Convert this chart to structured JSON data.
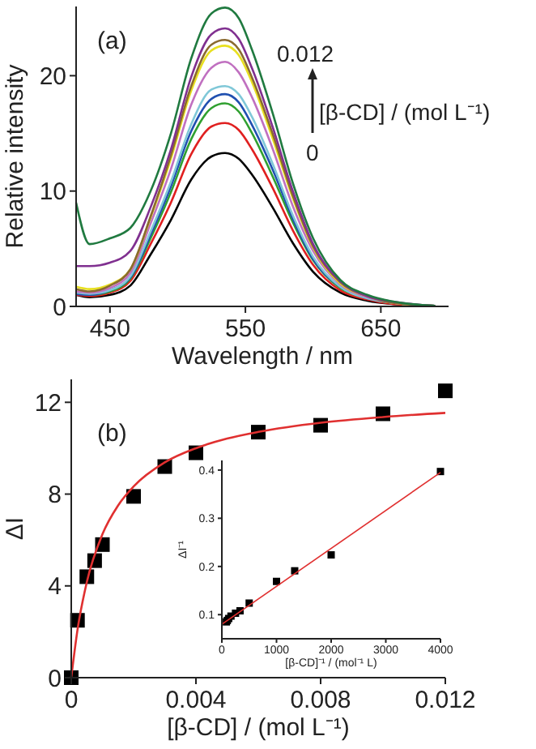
{
  "chart_data": [
    {
      "type": "line",
      "xlabel": "Wavelength / nm",
      "ylabel": "Relative intensity",
      "xlim": [
        425,
        700
      ],
      "ylim": [
        0,
        26
      ],
      "xticks": [
        450,
        550,
        650
      ],
      "yticks": [
        0,
        10,
        20
      ],
      "annotations": [
        "(a)",
        "0.012",
        "[β-CD] / (mol L⁻¹)",
        "0"
      ],
      "x": [
        425,
        435,
        450,
        465,
        480,
        495,
        510,
        525,
        535,
        545,
        555,
        570,
        585,
        600,
        620,
        640,
        660,
        690
      ],
      "series": [
        {
          "color": "#000000",
          "values": [
            1.0,
            0.8,
            1.0,
            1.8,
            4.5,
            7.5,
            11.0,
            13.0,
            13.3,
            12.8,
            11.4,
            8.6,
            5.5,
            3.0,
            1.2,
            0.5,
            0.2,
            0.05
          ]
        },
        {
          "color": "#e02020",
          "values": [
            1.0,
            0.9,
            1.2,
            2.2,
            5.4,
            9.0,
            13.2,
            15.6,
            15.9,
            15.3,
            13.6,
            10.3,
            6.6,
            3.6,
            1.4,
            0.6,
            0.2,
            0.05
          ]
        },
        {
          "color": "#30a030",
          "values": [
            1.2,
            1.0,
            1.3,
            2.4,
            5.9,
            9.9,
            14.5,
            17.2,
            17.6,
            16.9,
            15.0,
            11.3,
            7.3,
            4.0,
            1.6,
            0.7,
            0.3,
            0.05
          ]
        },
        {
          "color": "#2050b0",
          "values": [
            1.1,
            1.0,
            1.4,
            2.5,
            6.2,
            10.4,
            15.2,
            18.0,
            18.4,
            17.7,
            15.7,
            11.9,
            7.6,
            4.1,
            1.7,
            0.7,
            0.3,
            0.05
          ]
        },
        {
          "color": "#80c8d8",
          "values": [
            1.2,
            1.1,
            1.4,
            2.6,
            6.5,
            10.8,
            15.8,
            18.8,
            19.1,
            18.4,
            16.4,
            12.4,
            7.9,
            4.3,
            1.7,
            0.7,
            0.3,
            0.05
          ]
        },
        {
          "color": "#c070c0",
          "values": [
            1.3,
            1.2,
            1.6,
            2.9,
            7.2,
            11.9,
            17.5,
            20.7,
            21.2,
            20.3,
            18.1,
            13.7,
            8.7,
            4.8,
            1.9,
            0.8,
            0.3,
            0.05
          ]
        },
        {
          "color": "#e8e020",
          "values": [
            1.7,
            1.5,
            1.9,
            3.2,
            7.7,
            12.8,
            18.7,
            22.2,
            22.6,
            21.8,
            19.4,
            14.6,
            9.4,
            5.1,
            2.0,
            0.9,
            0.3,
            0.05
          ]
        },
        {
          "color": "#8a6a30",
          "values": [
            1.5,
            1.3,
            1.8,
            3.2,
            7.8,
            13.1,
            19.1,
            22.7,
            23.1,
            22.3,
            19.8,
            15.0,
            9.6,
            5.2,
            2.1,
            0.9,
            0.3,
            0.05
          ]
        },
        {
          "color": "#803090",
          "values": [
            3.5,
            3.5,
            3.8,
            4.8,
            8.6,
            13.6,
            19.9,
            23.6,
            24.1,
            23.2,
            20.6,
            15.6,
            10.0,
            5.4,
            2.2,
            0.9,
            0.4,
            0.05
          ]
        },
        {
          "color": "#207a40",
          "values": [
            9.0,
            5.4,
            5.9,
            6.8,
            10.0,
            15.0,
            21.5,
            25.4,
            25.9,
            25.0,
            22.2,
            16.8,
            10.7,
            5.9,
            2.3,
            1.0,
            0.4,
            0.05
          ]
        }
      ]
    },
    {
      "type": "scatter",
      "xlabel": "[β-CD] / (mol L⁻¹)",
      "ylabel": "ΔI",
      "xlim": [
        0,
        0.012
      ],
      "ylim": [
        0,
        13
      ],
      "xticks": [
        0,
        0.004,
        0.008,
        0.012
      ],
      "yticks": [
        0,
        4,
        8,
        12
      ],
      "annotations": [
        "(b)"
      ],
      "series": [
        {
          "type": "scatter",
          "marker": "square",
          "color": "#000000",
          "x": [
            0,
            0.0002,
            0.0005,
            0.00075,
            0.001,
            0.002,
            0.003,
            0.004,
            0.006,
            0.008,
            0.01,
            0.012
          ],
          "values": [
            0,
            2.5,
            4.4,
            5.1,
            5.8,
            7.9,
            9.2,
            9.8,
            10.7,
            11.0,
            11.5,
            12.5
          ]
        },
        {
          "type": "line",
          "color": "#e03030",
          "x": [
            0,
            0.0002,
            0.0005,
            0.001,
            0.0015,
            0.002,
            0.003,
            0.004,
            0.005,
            0.006,
            0.008,
            0.01,
            0.012
          ],
          "values": [
            0,
            2.08,
            4.17,
            6.25,
            7.5,
            8.33,
            9.38,
            10.0,
            10.42,
            10.71,
            11.11,
            11.36,
            11.54
          ]
        }
      ]
    },
    {
      "type": "scatter",
      "xlabel": "[β-CD]⁻¹ / (mol⁻¹ L)",
      "ylabel": "ΔI⁻¹",
      "xlim": [
        0,
        4000
      ],
      "ylim": [
        0.05,
        0.42
      ],
      "xticks": [
        0,
        1000,
        2000,
        3000,
        4000
      ],
      "yticks": [
        0.1,
        0.2,
        0.3,
        0.4
      ],
      "series": [
        {
          "type": "scatter",
          "marker": "square",
          "color": "#000000",
          "x": [
            83,
            100,
            125,
            167,
            250,
            333,
            500,
            1000,
            1333,
            2000,
            4000
          ],
          "values": [
            0.085,
            0.088,
            0.092,
            0.097,
            0.103,
            0.108,
            0.124,
            0.169,
            0.191,
            0.224,
            0.397
          ]
        },
        {
          "type": "line",
          "color": "#e03030",
          "x": [
            0,
            4000
          ],
          "values": [
            0.08,
            0.395
          ]
        }
      ]
    }
  ]
}
